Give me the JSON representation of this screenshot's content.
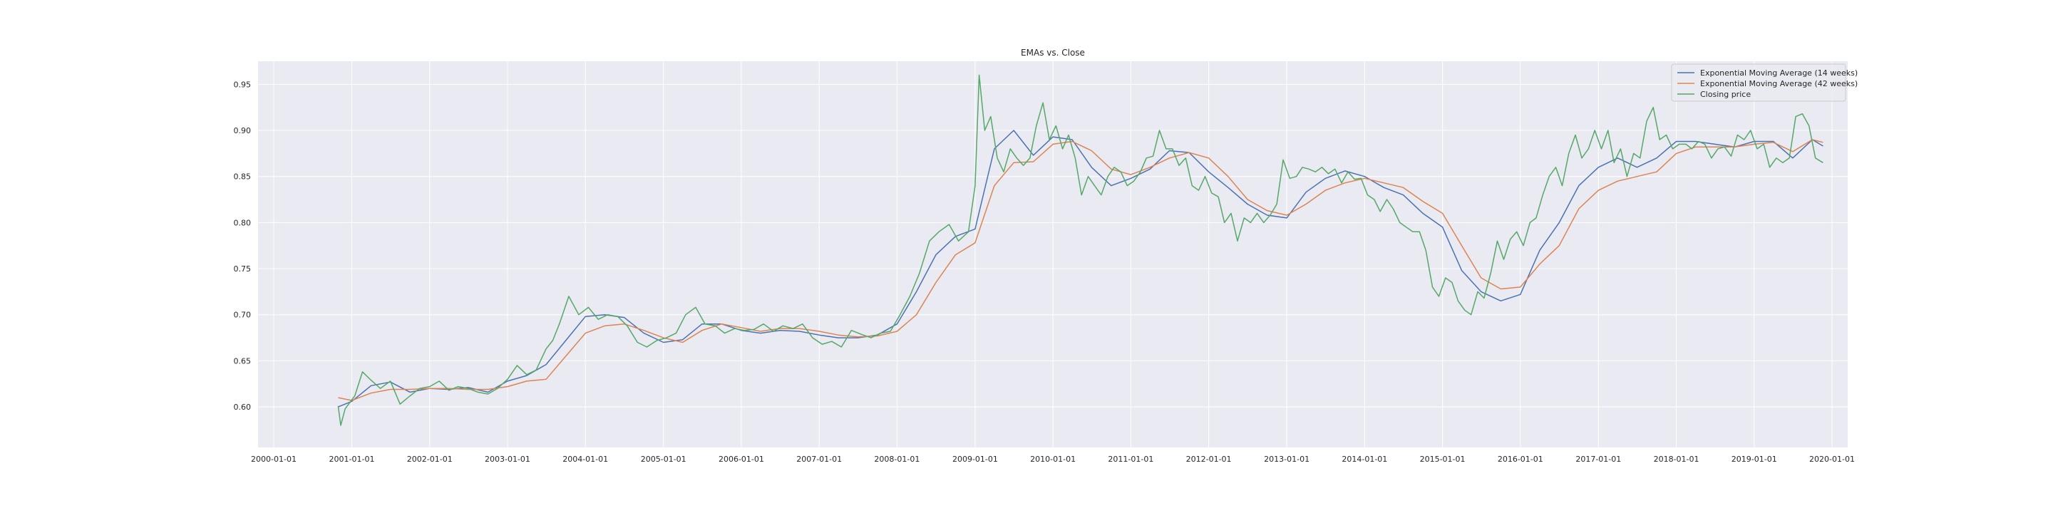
{
  "chart_data": {
    "type": "line",
    "title": "EMAs vs. Close",
    "xlabel": "",
    "ylabel": "",
    "grid": true,
    "legend_position": "top-right",
    "xlim": [
      "2000-01-01",
      "2020-01-01"
    ],
    "ylim": [
      0.556,
      0.975
    ],
    "x_ticks": [
      "2000-01-01",
      "2001-01-01",
      "2002-01-01",
      "2003-01-01",
      "2004-01-01",
      "2005-01-01",
      "2006-01-01",
      "2007-01-01",
      "2008-01-01",
      "2009-01-01",
      "2010-01-01",
      "2011-01-01",
      "2012-01-01",
      "2013-01-01",
      "2014-01-01",
      "2015-01-01",
      "2016-01-01",
      "2017-01-01",
      "2018-01-01",
      "2019-01-01",
      "2020-01-01"
    ],
    "y_ticks": [
      "0.60",
      "0.65",
      "0.70",
      "0.75",
      "0.80",
      "0.85",
      "0.90",
      "0.95"
    ],
    "background_color": "#eaeaf2",
    "grid_color": "#ffffff",
    "series": [
      {
        "name": "Exponential Moving Average (14 weeks)",
        "color": "#4c72b0",
        "x": [
          "2000-10-29",
          "2001-01-01",
          "2001-04-01",
          "2001-07-01",
          "2001-10-01",
          "2002-01-01",
          "2002-04-01",
          "2002-07-01",
          "2002-10-01",
          "2003-01-01",
          "2003-04-01",
          "2003-07-01",
          "2003-10-01",
          "2004-01-01",
          "2004-04-01",
          "2004-07-01",
          "2004-10-01",
          "2005-01-01",
          "2005-04-01",
          "2005-07-01",
          "2005-10-01",
          "2006-01-01",
          "2006-04-01",
          "2006-07-01",
          "2006-10-01",
          "2007-01-01",
          "2007-04-01",
          "2007-07-01",
          "2007-10-01",
          "2008-01-01",
          "2008-04-01",
          "2008-07-01",
          "2008-10-01",
          "2009-01-01",
          "2009-04-01",
          "2009-07-01",
          "2009-10-01",
          "2010-01-01",
          "2010-04-01",
          "2010-07-01",
          "2010-10-01",
          "2011-01-01",
          "2011-04-01",
          "2011-07-01",
          "2011-10-01",
          "2012-01-01",
          "2012-04-01",
          "2012-07-01",
          "2012-10-01",
          "2013-01-01",
          "2013-04-01",
          "2013-07-01",
          "2013-10-01",
          "2014-01-01",
          "2014-04-01",
          "2014-07-01",
          "2014-10-01",
          "2015-01-01",
          "2015-04-01",
          "2015-07-01",
          "2015-10-01",
          "2016-01-01",
          "2016-04-01",
          "2016-07-01",
          "2016-10-01",
          "2017-01-01",
          "2017-04-01",
          "2017-07-01",
          "2017-10-01",
          "2018-01-01",
          "2018-04-01",
          "2018-07-01",
          "2018-10-01",
          "2019-01-01",
          "2019-04-01",
          "2019-07-01",
          "2019-10-01",
          "2019-11-20"
        ],
        "values": [
          0.6,
          0.606,
          0.623,
          0.627,
          0.616,
          0.62,
          0.619,
          0.621,
          0.616,
          0.628,
          0.634,
          0.646,
          0.672,
          0.698,
          0.7,
          0.697,
          0.68,
          0.67,
          0.673,
          0.69,
          0.69,
          0.683,
          0.68,
          0.683,
          0.682,
          0.678,
          0.675,
          0.675,
          0.678,
          0.69,
          0.725,
          0.765,
          0.785,
          0.793,
          0.88,
          0.9,
          0.873,
          0.893,
          0.89,
          0.86,
          0.84,
          0.848,
          0.858,
          0.878,
          0.876,
          0.855,
          0.838,
          0.82,
          0.808,
          0.805,
          0.833,
          0.848,
          0.856,
          0.85,
          0.838,
          0.83,
          0.81,
          0.795,
          0.748,
          0.725,
          0.715,
          0.722,
          0.77,
          0.8,
          0.84,
          0.86,
          0.87,
          0.86,
          0.87,
          0.888,
          0.888,
          0.885,
          0.882,
          0.888,
          0.888,
          0.87,
          0.89,
          0.883
        ]
      },
      {
        "name": "Exponential Moving Average (42 weeks)",
        "color": "#dd8452",
        "x": [
          "2000-10-29",
          "2001-01-01",
          "2001-04-01",
          "2001-07-01",
          "2001-10-01",
          "2002-01-01",
          "2002-04-01",
          "2002-07-01",
          "2002-10-01",
          "2003-01-01",
          "2003-04-01",
          "2003-07-01",
          "2003-10-01",
          "2004-01-01",
          "2004-04-01",
          "2004-07-01",
          "2004-10-01",
          "2005-01-01",
          "2005-04-01",
          "2005-07-01",
          "2005-10-01",
          "2006-01-01",
          "2006-04-01",
          "2006-07-01",
          "2006-10-01",
          "2007-01-01",
          "2007-04-01",
          "2007-07-01",
          "2007-10-01",
          "2008-01-01",
          "2008-04-01",
          "2008-07-01",
          "2008-10-01",
          "2009-01-01",
          "2009-04-01",
          "2009-07-01",
          "2009-10-01",
          "2010-01-01",
          "2010-04-01",
          "2010-07-01",
          "2010-10-01",
          "2011-01-01",
          "2011-04-01",
          "2011-07-01",
          "2011-10-01",
          "2012-01-01",
          "2012-04-01",
          "2012-07-01",
          "2012-10-01",
          "2013-01-01",
          "2013-04-01",
          "2013-07-01",
          "2013-10-01",
          "2014-01-01",
          "2014-04-01",
          "2014-07-01",
          "2014-10-01",
          "2015-01-01",
          "2015-04-01",
          "2015-07-01",
          "2015-10-01",
          "2016-01-01",
          "2016-04-01",
          "2016-07-01",
          "2016-10-01",
          "2017-01-01",
          "2017-04-01",
          "2017-07-01",
          "2017-10-01",
          "2018-01-01",
          "2018-04-01",
          "2018-07-01",
          "2018-10-01",
          "2019-01-01",
          "2019-04-01",
          "2019-07-01",
          "2019-10-01",
          "2019-11-20"
        ],
        "values": [
          0.61,
          0.607,
          0.615,
          0.619,
          0.619,
          0.62,
          0.62,
          0.619,
          0.619,
          0.622,
          0.628,
          0.63,
          0.655,
          0.68,
          0.688,
          0.69,
          0.683,
          0.675,
          0.67,
          0.683,
          0.69,
          0.686,
          0.682,
          0.685,
          0.685,
          0.682,
          0.678,
          0.676,
          0.677,
          0.682,
          0.7,
          0.735,
          0.765,
          0.778,
          0.84,
          0.865,
          0.866,
          0.885,
          0.888,
          0.878,
          0.858,
          0.852,
          0.86,
          0.87,
          0.876,
          0.87,
          0.85,
          0.825,
          0.813,
          0.808,
          0.82,
          0.835,
          0.843,
          0.848,
          0.843,
          0.838,
          0.823,
          0.81,
          0.775,
          0.74,
          0.728,
          0.73,
          0.755,
          0.775,
          0.815,
          0.835,
          0.845,
          0.85,
          0.855,
          0.875,
          0.882,
          0.882,
          0.882,
          0.885,
          0.887,
          0.877,
          0.89,
          0.887
        ]
      },
      {
        "name": "Closing price",
        "color": "#55a868",
        "x": [
          "2000-10-29",
          "2000-11-10",
          "2000-12-01",
          "2001-01-15",
          "2001-02-20",
          "2001-04-01",
          "2001-05-15",
          "2001-07-01",
          "2001-08-15",
          "2001-10-01",
          "2001-11-15",
          "2002-01-01",
          "2002-02-15",
          "2002-04-01",
          "2002-05-15",
          "2002-07-01",
          "2002-08-15",
          "2002-10-01",
          "2002-11-15",
          "2003-01-01",
          "2003-02-15",
          "2003-04-01",
          "2003-05-15",
          "2003-07-01",
          "2003-08-01",
          "2003-09-01",
          "2003-10-15",
          "2003-12-01",
          "2004-01-15",
          "2004-03-01",
          "2004-04-15",
          "2004-06-01",
          "2004-07-15",
          "2004-09-01",
          "2004-10-15",
          "2004-12-01",
          "2005-01-15",
          "2005-03-01",
          "2005-04-15",
          "2005-06-01",
          "2005-07-15",
          "2005-09-01",
          "2005-10-15",
          "2005-12-01",
          "2006-01-15",
          "2006-03-01",
          "2006-04-15",
          "2006-06-01",
          "2006-07-15",
          "2006-09-01",
          "2006-10-15",
          "2006-12-01",
          "2007-01-15",
          "2007-03-01",
          "2007-04-15",
          "2007-06-01",
          "2007-07-15",
          "2007-09-01",
          "2007-10-15",
          "2007-12-01",
          "2008-01-15",
          "2008-03-01",
          "2008-04-15",
          "2008-06-01",
          "2008-07-15",
          "2008-09-01",
          "2008-10-15",
          "2008-12-01",
          "2009-01-01",
          "2009-01-20",
          "2009-02-15",
          "2009-03-15",
          "2009-04-15",
          "2009-05-15",
          "2009-06-15",
          "2009-07-15",
          "2009-08-15",
          "2009-09-15",
          "2009-10-15",
          "2009-11-15",
          "2009-12-15",
          "2010-01-15",
          "2010-02-15",
          "2010-03-15",
          "2010-04-15",
          "2010-05-15",
          "2010-06-15",
          "2010-07-15",
          "2010-08-15",
          "2010-09-15",
          "2010-10-15",
          "2010-11-15",
          "2010-12-15",
          "2011-01-15",
          "2011-02-15",
          "2011-03-15",
          "2011-04-15",
          "2011-05-15",
          "2011-06-15",
          "2011-07-15",
          "2011-08-15",
          "2011-09-15",
          "2011-10-15",
          "2011-11-15",
          "2011-12-15",
          "2012-01-15",
          "2012-02-15",
          "2012-03-15",
          "2012-04-15",
          "2012-05-15",
          "2012-06-15",
          "2012-07-15",
          "2012-08-15",
          "2012-09-15",
          "2012-10-15",
          "2012-11-15",
          "2012-12-15",
          "2013-01-15",
          "2013-02-15",
          "2013-03-15",
          "2013-04-15",
          "2013-05-15",
          "2013-06-15",
          "2013-07-15",
          "2013-08-15",
          "2013-09-15",
          "2013-10-15",
          "2013-11-15",
          "2013-12-15",
          "2014-01-15",
          "2014-02-15",
          "2014-03-15",
          "2014-04-15",
          "2014-05-15",
          "2014-06-15",
          "2014-07-15",
          "2014-08-15",
          "2014-09-15",
          "2014-10-15",
          "2014-11-15",
          "2014-12-15",
          "2015-01-15",
          "2015-02-15",
          "2015-03-15",
          "2015-04-15",
          "2015-05-15",
          "2015-06-15",
          "2015-07-15",
          "2015-08-15",
          "2015-09-15",
          "2015-10-15",
          "2015-11-15",
          "2015-12-15",
          "2016-01-15",
          "2016-02-15",
          "2016-03-15",
          "2016-04-15",
          "2016-05-15",
          "2016-06-15",
          "2016-07-15",
          "2016-08-15",
          "2016-09-15",
          "2016-10-15",
          "2016-11-15",
          "2016-12-15",
          "2017-01-15",
          "2017-02-15",
          "2017-03-15",
          "2017-04-15",
          "2017-05-15",
          "2017-06-15",
          "2017-07-15",
          "2017-08-15",
          "2017-09-15",
          "2017-10-15",
          "2017-11-15",
          "2017-12-15",
          "2018-01-15",
          "2018-02-15",
          "2018-03-15",
          "2018-04-15",
          "2018-05-15",
          "2018-06-15",
          "2018-07-15",
          "2018-08-15",
          "2018-09-15",
          "2018-10-15",
          "2018-11-15",
          "2018-12-15",
          "2019-01-15",
          "2019-02-15",
          "2019-03-15",
          "2019-04-15",
          "2019-05-15",
          "2019-06-15",
          "2019-07-15",
          "2019-08-15",
          "2019-09-15",
          "2019-10-15",
          "2019-11-20"
        ],
        "values": [
          0.601,
          0.58,
          0.598,
          0.612,
          0.638,
          0.629,
          0.62,
          0.628,
          0.603,
          0.612,
          0.62,
          0.622,
          0.628,
          0.618,
          0.622,
          0.62,
          0.616,
          0.614,
          0.62,
          0.63,
          0.645,
          0.635,
          0.64,
          0.663,
          0.672,
          0.69,
          0.72,
          0.7,
          0.708,
          0.695,
          0.7,
          0.698,
          0.688,
          0.67,
          0.665,
          0.672,
          0.675,
          0.68,
          0.7,
          0.708,
          0.69,
          0.688,
          0.68,
          0.685,
          0.683,
          0.684,
          0.69,
          0.682,
          0.688,
          0.685,
          0.69,
          0.675,
          0.668,
          0.671,
          0.665,
          0.683,
          0.679,
          0.675,
          0.68,
          0.682,
          0.7,
          0.72,
          0.745,
          0.78,
          0.79,
          0.798,
          0.78,
          0.79,
          0.84,
          0.96,
          0.9,
          0.915,
          0.87,
          0.855,
          0.88,
          0.87,
          0.862,
          0.87,
          0.905,
          0.93,
          0.89,
          0.905,
          0.88,
          0.895,
          0.87,
          0.83,
          0.85,
          0.84,
          0.83,
          0.85,
          0.86,
          0.855,
          0.84,
          0.845,
          0.855,
          0.87,
          0.872,
          0.9,
          0.88,
          0.88,
          0.862,
          0.87,
          0.84,
          0.835,
          0.85,
          0.832,
          0.828,
          0.8,
          0.81,
          0.78,
          0.805,
          0.8,
          0.81,
          0.8,
          0.808,
          0.82,
          0.868,
          0.848,
          0.85,
          0.86,
          0.858,
          0.855,
          0.86,
          0.853,
          0.858,
          0.843,
          0.855,
          0.847,
          0.848,
          0.83,
          0.825,
          0.812,
          0.825,
          0.815,
          0.8,
          0.795,
          0.79,
          0.79,
          0.77,
          0.73,
          0.72,
          0.74,
          0.735,
          0.715,
          0.705,
          0.7,
          0.725,
          0.718,
          0.745,
          0.78,
          0.76,
          0.782,
          0.79,
          0.775,
          0.8,
          0.805,
          0.83,
          0.85,
          0.86,
          0.84,
          0.875,
          0.895,
          0.87,
          0.88,
          0.9,
          0.88,
          0.9,
          0.865,
          0.88,
          0.85,
          0.875,
          0.87,
          0.91,
          0.925,
          0.89,
          0.895,
          0.88,
          0.885,
          0.885,
          0.88,
          0.888,
          0.885,
          0.87,
          0.88,
          0.882,
          0.872,
          0.895,
          0.89,
          0.9,
          0.88,
          0.885,
          0.86,
          0.87,
          0.865,
          0.87,
          0.915,
          0.918,
          0.905,
          0.87,
          0.865
        ]
      }
    ]
  }
}
